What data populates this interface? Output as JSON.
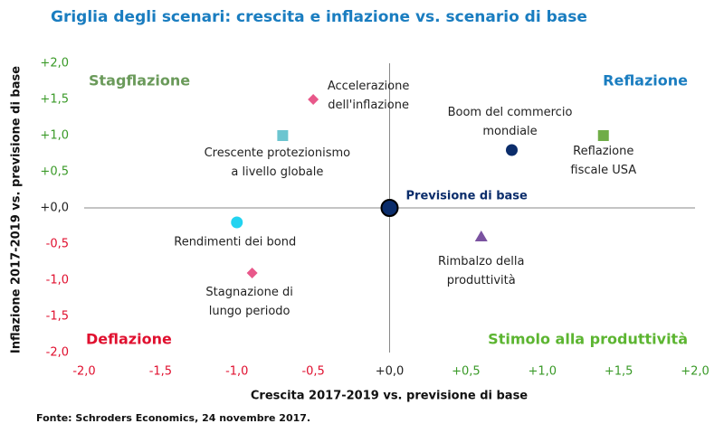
{
  "chart_data": {
    "type": "scatter",
    "title": "Griglia degli scenari: crescita e inflazione vs. scenario di base",
    "title_color": "#1a7dc0",
    "x_label": "Crescita 2017-2019 vs. previsione di base",
    "y_label": "Inflazione 2017-2019 vs. previsione di base",
    "source": "Fonte: Schroders Economics, 24 novembre 2017.",
    "xlim": [
      -2,
      2
    ],
    "ylim": [
      -2,
      2
    ],
    "xticks": [
      {
        "value": -2,
        "label": "-2,0"
      },
      {
        "value": -1.5,
        "label": "-1,5"
      },
      {
        "value": -1,
        "label": "-1,0"
      },
      {
        "value": -0.5,
        "label": "-0,5"
      },
      {
        "value": 0,
        "label": "+0,0"
      },
      {
        "value": 0.5,
        "label": "+0,5"
      },
      {
        "value": 1,
        "label": "+1,0"
      },
      {
        "value": 1.5,
        "label": "+1,5"
      },
      {
        "value": 2,
        "label": "+2,0"
      }
    ],
    "yticks": [
      {
        "value": -2,
        "label": "-2,0"
      },
      {
        "value": -1.5,
        "label": "-1,5"
      },
      {
        "value": -1,
        "label": "-1,0"
      },
      {
        "value": -0.5,
        "label": "-0,5"
      },
      {
        "value": 0,
        "label": "+0,0"
      },
      {
        "value": 0.5,
        "label": "+0,5"
      },
      {
        "value": 1,
        "label": "+1,0"
      },
      {
        "value": 1.5,
        "label": "+1,5"
      },
      {
        "value": 2,
        "label": "+2,0"
      }
    ],
    "negative_tick_color": "#e0102f",
    "positive_tick_color": "#3a9a28",
    "zero_tick_color": "#222",
    "quadrants": [
      {
        "text": "Stagflazione",
        "corner": "top-left",
        "color": "#6a9a5a"
      },
      {
        "text": "Reflazione",
        "corner": "top-right",
        "color": "#1a7dc0"
      },
      {
        "text": "Deflazione",
        "corner": "bottom-left",
        "color": "#e0102f"
      },
      {
        "text": "Stimolo alla produttività",
        "corner": "bottom-right",
        "color": "#5cb531"
      }
    ],
    "series": [
      {
        "name": "Accelerazione\ndell'inflazione",
        "color": "#e8588a",
        "marker": "diamond",
        "x": [
          -0.5
        ],
        "values": [
          1.5
        ]
      },
      {
        "name": "Crescente protezionismo\na livello globale",
        "color": "#6cc5d0",
        "marker": "square",
        "x": [
          -0.7
        ],
        "values": [
          1.0
        ]
      },
      {
        "name": "Rendimenti dei bond",
        "color": "#22d3f0",
        "marker": "circle",
        "x": [
          -1.0
        ],
        "values": [
          -0.2
        ]
      },
      {
        "name": "Stagnazione di\nlungo periodo",
        "color": "#e8588a",
        "marker": "diamond",
        "x": [
          -0.9
        ],
        "values": [
          -0.9
        ]
      },
      {
        "name": "Previsione di base",
        "color": "#0b2d6b",
        "marker": "big-circle",
        "x": [
          0
        ],
        "values": [
          0
        ]
      },
      {
        "name": "Boom del commercio\nmondiale",
        "color": "#0b2d6b",
        "marker": "circle",
        "x": [
          0.8
        ],
        "values": [
          0.8
        ]
      },
      {
        "name": "Reflazione\nfiscale USA",
        "color": "#70ad47",
        "marker": "square",
        "x": [
          1.4
        ],
        "values": [
          1.0
        ]
      },
      {
        "name": "Rimbalzo della\nproduttività",
        "color": "#7a52a0",
        "marker": "triangle",
        "x": [
          0.6
        ],
        "values": [
          -0.4
        ]
      }
    ]
  }
}
